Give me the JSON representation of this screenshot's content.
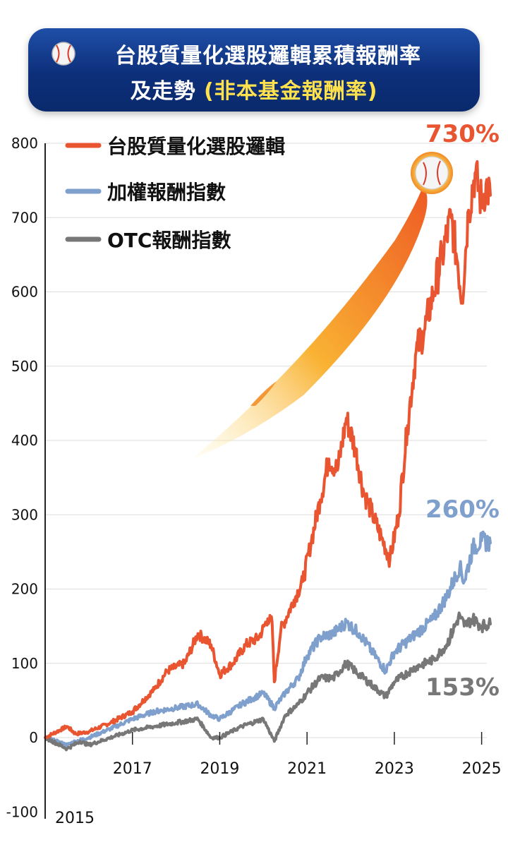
{
  "banner": {
    "line1": "台股質量化選股邏輯累積報酬率",
    "line2": "及走勢",
    "line2_highlight": "(非本基金報酬率)",
    "icon": "baseball-icon"
  },
  "chart_data": {
    "type": "line",
    "title": "台股質量化選股邏輯累積報酬率及走勢 (非本基金報酬率)",
    "xlabel": "",
    "ylabel": "",
    "ylim": [
      -100,
      800
    ],
    "xlim": [
      2015,
      2025.2
    ],
    "y_ticks": [
      "800",
      "700",
      "600",
      "500",
      "400",
      "300",
      "200",
      "100",
      "0",
      "-100"
    ],
    "x_ticks": [
      "2017",
      "2019",
      "2021",
      "2023",
      "2025"
    ],
    "x_start_label": "2015",
    "grid": true,
    "legend_position": "top-left",
    "series": [
      {
        "name": "台股質量化選股邏輯",
        "color": "#e85530",
        "end_label": "730%",
        "points": [
          [
            2015.0,
            0
          ],
          [
            2015.5,
            15
          ],
          [
            2015.7,
            5
          ],
          [
            2016.0,
            8
          ],
          [
            2016.5,
            20
          ],
          [
            2017.0,
            35
          ],
          [
            2017.5,
            65
          ],
          [
            2017.8,
            90
          ],
          [
            2018.2,
            100
          ],
          [
            2018.5,
            140
          ],
          [
            2018.8,
            125
          ],
          [
            2019.0,
            85
          ],
          [
            2019.3,
            100
          ],
          [
            2019.6,
            125
          ],
          [
            2019.9,
            135
          ],
          [
            2020.1,
            160
          ],
          [
            2020.2,
            155
          ],
          [
            2020.25,
            75
          ],
          [
            2020.4,
            145
          ],
          [
            2020.7,
            185
          ],
          [
            2020.9,
            210
          ],
          [
            2021.1,
            265
          ],
          [
            2021.3,
            320
          ],
          [
            2021.5,
            375
          ],
          [
            2021.7,
            360
          ],
          [
            2021.9,
            430
          ],
          [
            2022.1,
            390
          ],
          [
            2022.3,
            330
          ],
          [
            2022.5,
            300
          ],
          [
            2022.7,
            270
          ],
          [
            2022.9,
            240
          ],
          [
            2023.1,
            300
          ],
          [
            2023.3,
            420
          ],
          [
            2023.5,
            520
          ],
          [
            2023.7,
            550
          ],
          [
            2023.9,
            600
          ],
          [
            2024.1,
            650
          ],
          [
            2024.3,
            700
          ],
          [
            2024.45,
            640
          ],
          [
            2024.55,
            590
          ],
          [
            2024.7,
            710
          ],
          [
            2024.85,
            760
          ],
          [
            2025.0,
            720
          ],
          [
            2025.1,
            745
          ],
          [
            2025.2,
            730
          ]
        ]
      },
      {
        "name": "加權報酬指數",
        "color": "#7f9fcc",
        "end_label": "260%",
        "points": [
          [
            2015.0,
            0
          ],
          [
            2015.5,
            -10
          ],
          [
            2015.7,
            -5
          ],
          [
            2016.0,
            0
          ],
          [
            2016.5,
            12
          ],
          [
            2017.0,
            25
          ],
          [
            2017.5,
            35
          ],
          [
            2018.0,
            40
          ],
          [
            2018.5,
            45
          ],
          [
            2018.8,
            30
          ],
          [
            2019.0,
            25
          ],
          [
            2019.5,
            45
          ],
          [
            2020.0,
            60
          ],
          [
            2020.25,
            40
          ],
          [
            2020.5,
            60
          ],
          [
            2020.8,
            80
          ],
          [
            2021.0,
            110
          ],
          [
            2021.3,
            135
          ],
          [
            2021.6,
            140
          ],
          [
            2021.9,
            155
          ],
          [
            2022.2,
            140
          ],
          [
            2022.5,
            115
          ],
          [
            2022.8,
            90
          ],
          [
            2023.0,
            115
          ],
          [
            2023.5,
            140
          ],
          [
            2023.9,
            160
          ],
          [
            2024.2,
            190
          ],
          [
            2024.5,
            230
          ],
          [
            2024.6,
            210
          ],
          [
            2024.8,
            255
          ],
          [
            2025.0,
            265
          ],
          [
            2025.2,
            262
          ]
        ]
      },
      {
        "name": "OTC報酬指數",
        "color": "#777777",
        "end_label": "153%",
        "points": [
          [
            2015.0,
            0
          ],
          [
            2015.5,
            -15
          ],
          [
            2015.8,
            -5
          ],
          [
            2016.0,
            -10
          ],
          [
            2016.5,
            0
          ],
          [
            2017.0,
            10
          ],
          [
            2017.5,
            15
          ],
          [
            2018.0,
            20
          ],
          [
            2018.5,
            25
          ],
          [
            2018.8,
            0
          ],
          [
            2019.0,
            0
          ],
          [
            2019.5,
            15
          ],
          [
            2020.0,
            25
          ],
          [
            2020.25,
            -5
          ],
          [
            2020.5,
            30
          ],
          [
            2020.8,
            45
          ],
          [
            2021.0,
            60
          ],
          [
            2021.3,
            80
          ],
          [
            2021.6,
            80
          ],
          [
            2021.9,
            100
          ],
          [
            2022.2,
            85
          ],
          [
            2022.5,
            70
          ],
          [
            2022.8,
            55
          ],
          [
            2023.0,
            75
          ],
          [
            2023.5,
            95
          ],
          [
            2023.9,
            105
          ],
          [
            2024.2,
            125
          ],
          [
            2024.5,
            165
          ],
          [
            2024.6,
            150
          ],
          [
            2024.8,
            160
          ],
          [
            2025.0,
            150
          ],
          [
            2025.2,
            153
          ]
        ]
      }
    ]
  }
}
